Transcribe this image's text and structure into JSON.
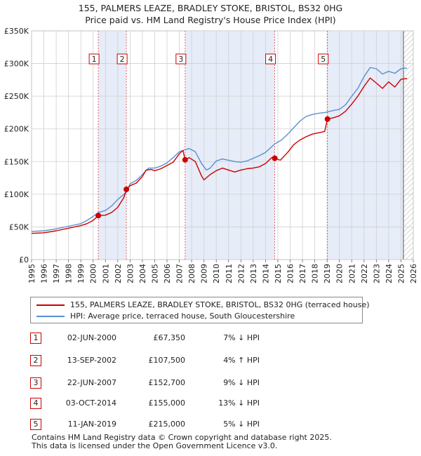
{
  "title": {
    "line1": "155, PALMERS LEAZE, BRADLEY STOKE, BRISTOL, BS32 0HG",
    "line2": "Price paid vs. HM Land Registry's House Price Index (HPI)"
  },
  "colors": {
    "property": "#cc0000",
    "hpi": "#5b8fd0",
    "shade": "#e6ecf8",
    "hatch": "#c8c8c8",
    "vline": "#dd4444"
  },
  "legend": {
    "property_label": "155, PALMERS LEAZE, BRADLEY STOKE, BRISTOL, BS32 0HG (terraced house)",
    "hpi_label": "HPI: Average price, terraced house, South Gloucestershire"
  },
  "transactions": [
    {
      "num": "1",
      "date": "02-JUN-2000",
      "price": "£67,350",
      "hpi": "7% ↓ HPI"
    },
    {
      "num": "2",
      "date": "13-SEP-2002",
      "price": "£107,500",
      "hpi": "4% ↑ HPI"
    },
    {
      "num": "3",
      "date": "22-JUN-2007",
      "price": "£152,700",
      "hpi": "9% ↓ HPI"
    },
    {
      "num": "4",
      "date": "03-OCT-2014",
      "price": "£155,000",
      "hpi": "13% ↓ HPI"
    },
    {
      "num": "5",
      "date": "11-JAN-2019",
      "price": "£215,000",
      "hpi": "5% ↓ HPI"
    }
  ],
  "footer": {
    "line1": "Contains HM Land Registry data © Crown copyright and database right 2025.",
    "line2": "This data is licensed under the Open Government Licence v3.0."
  },
  "chart_data": {
    "type": "line",
    "title": "Price paid vs. HM Land Registry's House Price Index (HPI)",
    "xlim": [
      1995,
      2026
    ],
    "ylim": [
      0,
      350000
    ],
    "x_ticks": [
      1995,
      1996,
      1997,
      1998,
      1999,
      2000,
      2001,
      2002,
      2003,
      2004,
      2005,
      2006,
      2007,
      2008,
      2009,
      2010,
      2011,
      2012,
      2013,
      2014,
      2015,
      2016,
      2017,
      2018,
      2019,
      2020,
      2021,
      2022,
      2023,
      2024,
      2025,
      2026
    ],
    "y_ticks": [
      0,
      50000,
      100000,
      150000,
      200000,
      250000,
      300000,
      350000
    ],
    "y_tick_labels": [
      "£0",
      "£50K",
      "£100K",
      "£150K",
      "£200K",
      "£250K",
      "£300K",
      "£350K"
    ],
    "grid": true,
    "projection_start": 2025.2,
    "sales": [
      {
        "label": "1",
        "x": 2000.42,
        "y": 67350
      },
      {
        "label": "2",
        "x": 2002.7,
        "y": 107500
      },
      {
        "label": "3",
        "x": 2007.47,
        "y": 152700
      },
      {
        "label": "4",
        "x": 2014.75,
        "y": 155000
      },
      {
        "label": "5",
        "x": 2019.03,
        "y": 215000
      }
    ],
    "series": [
      {
        "name": "155, PALMERS LEAZE, BRADLEY STOKE, BRISTOL, BS32 0HG (terraced house)",
        "points": [
          [
            1995.0,
            40000
          ],
          [
            1996.0,
            41000
          ],
          [
            1997.0,
            44000
          ],
          [
            1998.0,
            48000
          ],
          [
            1999.0,
            52000
          ],
          [
            1999.5,
            55000
          ],
          [
            2000.0,
            60000
          ],
          [
            2000.42,
            67350
          ],
          [
            2001.0,
            68000
          ],
          [
            2001.5,
            72000
          ],
          [
            2002.0,
            80000
          ],
          [
            2002.5,
            95000
          ],
          [
            2002.7,
            107500
          ],
          [
            2003.0,
            113000
          ],
          [
            2003.5,
            117000
          ],
          [
            2004.0,
            127000
          ],
          [
            2004.3,
            137000
          ],
          [
            2004.7,
            138000
          ],
          [
            2005.0,
            136000
          ],
          [
            2005.5,
            139000
          ],
          [
            2006.0,
            144000
          ],
          [
            2006.5,
            149000
          ],
          [
            2007.0,
            162000
          ],
          [
            2007.3,
            167000
          ],
          [
            2007.47,
            152700
          ],
          [
            2007.8,
            156000
          ],
          [
            2008.3,
            150000
          ],
          [
            2008.8,
            128000
          ],
          [
            2009.0,
            122000
          ],
          [
            2009.5,
            130000
          ],
          [
            2010.0,
            136000
          ],
          [
            2010.5,
            140000
          ],
          [
            2011.0,
            137000
          ],
          [
            2011.5,
            134000
          ],
          [
            2012.0,
            137000
          ],
          [
            2012.5,
            139000
          ],
          [
            2013.0,
            140000
          ],
          [
            2013.5,
            142000
          ],
          [
            2014.0,
            147000
          ],
          [
            2014.5,
            156000
          ],
          [
            2014.75,
            155000
          ],
          [
            2015.2,
            152000
          ],
          [
            2015.8,
            164000
          ],
          [
            2016.3,
            176000
          ],
          [
            2016.8,
            183000
          ],
          [
            2017.3,
            188000
          ],
          [
            2017.8,
            192000
          ],
          [
            2018.3,
            194000
          ],
          [
            2018.8,
            196000
          ],
          [
            2019.03,
            215000
          ],
          [
            2019.5,
            217000
          ],
          [
            2020.0,
            220000
          ],
          [
            2020.5,
            227000
          ],
          [
            2021.0,
            238000
          ],
          [
            2021.5,
            250000
          ],
          [
            2022.0,
            265000
          ],
          [
            2022.5,
            278000
          ],
          [
            2023.0,
            270000
          ],
          [
            2023.5,
            262000
          ],
          [
            2024.0,
            272000
          ],
          [
            2024.5,
            264000
          ],
          [
            2025.0,
            276000
          ],
          [
            2025.5,
            277000
          ]
        ]
      },
      {
        "name": "HPI: Average price, terraced house, South Gloucestershire",
        "points": [
          [
            1995.0,
            43000
          ],
          [
            1996.0,
            44000
          ],
          [
            1997.0,
            47000
          ],
          [
            1998.0,
            51000
          ],
          [
            1999.0,
            55000
          ],
          [
            1999.5,
            60000
          ],
          [
            2000.0,
            66000
          ],
          [
            2000.42,
            72000
          ],
          [
            2001.0,
            75000
          ],
          [
            2001.5,
            82000
          ],
          [
            2002.0,
            92000
          ],
          [
            2002.7,
            103000
          ],
          [
            2003.0,
            116000
          ],
          [
            2003.5,
            121000
          ],
          [
            2004.0,
            130000
          ],
          [
            2004.5,
            140000
          ],
          [
            2005.0,
            140000
          ],
          [
            2005.5,
            143000
          ],
          [
            2006.0,
            148000
          ],
          [
            2006.5,
            156000
          ],
          [
            2007.0,
            165000
          ],
          [
            2007.47,
            168000
          ],
          [
            2007.8,
            170000
          ],
          [
            2008.3,
            165000
          ],
          [
            2008.8,
            147000
          ],
          [
            2009.2,
            137000
          ],
          [
            2009.5,
            140000
          ],
          [
            2010.0,
            151000
          ],
          [
            2010.5,
            154000
          ],
          [
            2011.0,
            152000
          ],
          [
            2011.5,
            150000
          ],
          [
            2012.0,
            149000
          ],
          [
            2012.5,
            151000
          ],
          [
            2013.0,
            155000
          ],
          [
            2013.5,
            159000
          ],
          [
            2014.0,
            164000
          ],
          [
            2014.75,
            177000
          ],
          [
            2015.3,
            183000
          ],
          [
            2015.8,
            192000
          ],
          [
            2016.3,
            202000
          ],
          [
            2016.8,
            212000
          ],
          [
            2017.3,
            219000
          ],
          [
            2017.8,
            222000
          ],
          [
            2018.3,
            224000
          ],
          [
            2018.8,
            225000
          ],
          [
            2019.03,
            226000
          ],
          [
            2019.5,
            228000
          ],
          [
            2020.0,
            230000
          ],
          [
            2020.5,
            237000
          ],
          [
            2021.0,
            250000
          ],
          [
            2021.5,
            262000
          ],
          [
            2022.0,
            280000
          ],
          [
            2022.5,
            294000
          ],
          [
            2023.0,
            292000
          ],
          [
            2023.5,
            284000
          ],
          [
            2024.0,
            288000
          ],
          [
            2024.5,
            285000
          ],
          [
            2025.0,
            292000
          ],
          [
            2025.5,
            293000
          ]
        ]
      }
    ]
  }
}
